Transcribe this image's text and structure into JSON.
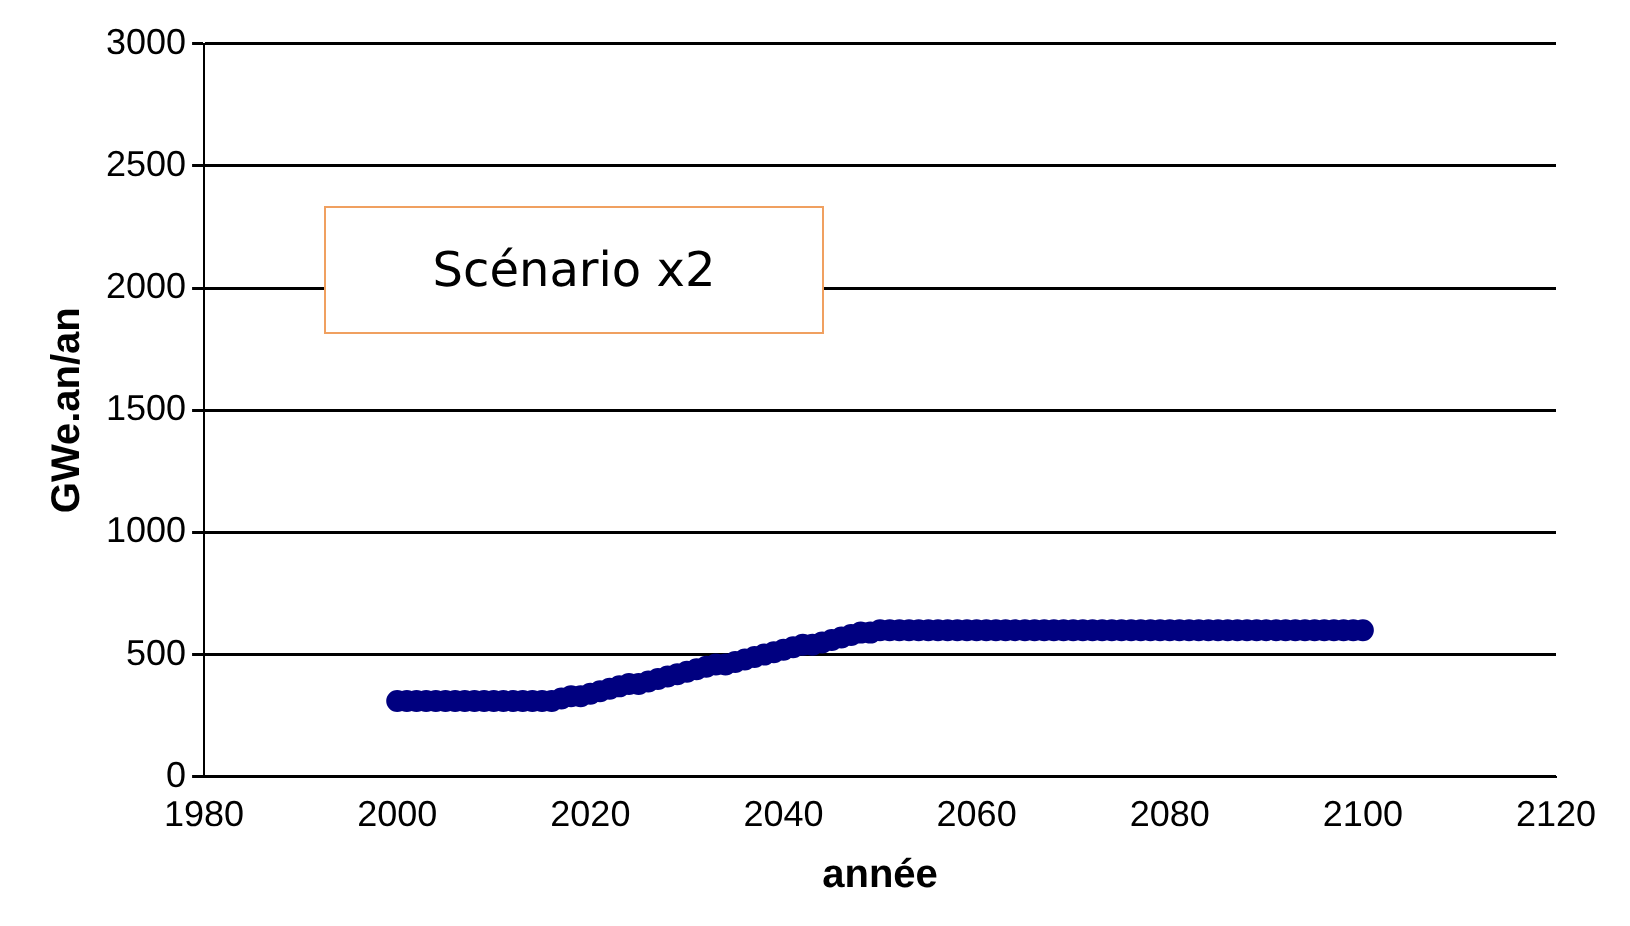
{
  "chart_data": {
    "type": "scatter",
    "xlabel": "année",
    "ylabel": "GWe.an/an",
    "annotations": [
      "Scénario x2"
    ],
    "xlim": [
      1980,
      2120
    ],
    "xticks": [
      1980,
      2000,
      2020,
      2040,
      2060,
      2080,
      2100,
      2120
    ],
    "ylim": [
      0,
      3000
    ],
    "yticks": [
      0,
      500,
      1000,
      1500,
      2000,
      2500,
      3000
    ],
    "grid": "y",
    "legend": false,
    "marker": "circle",
    "series": [
      {
        "color": "#000080",
        "x": [
          2000,
          2001,
          2002,
          2003,
          2004,
          2005,
          2006,
          2007,
          2008,
          2009,
          2010,
          2011,
          2012,
          2013,
          2014,
          2015,
          2016,
          2017,
          2018,
          2019,
          2020,
          2021,
          2022,
          2023,
          2024,
          2025,
          2026,
          2027,
          2028,
          2029,
          2030,
          2031,
          2032,
          2033,
          2034,
          2035,
          2036,
          2037,
          2038,
          2039,
          2040,
          2041,
          2042,
          2043,
          2044,
          2045,
          2046,
          2047,
          2048,
          2049,
          2050,
          2051,
          2052,
          2053,
          2054,
          2055,
          2056,
          2057,
          2058,
          2059,
          2060,
          2061,
          2062,
          2063,
          2064,
          2065,
          2066,
          2067,
          2068,
          2069,
          2070,
          2071,
          2072,
          2073,
          2074,
          2075,
          2076,
          2077,
          2078,
          2079,
          2080,
          2081,
          2082,
          2083,
          2084,
          2085,
          2086,
          2087,
          2088,
          2089,
          2090,
          2091,
          2092,
          2093,
          2094,
          2095,
          2096,
          2097,
          2098,
          2099,
          2100
        ],
        "values": [
          310,
          310,
          310,
          310,
          310,
          310,
          310,
          310,
          310,
          310,
          310,
          310,
          310,
          310,
          310,
          310,
          310,
          320,
          330,
          330,
          340,
          350,
          360,
          370,
          380,
          380,
          390,
          400,
          410,
          420,
          430,
          440,
          450,
          460,
          460,
          470,
          480,
          490,
          500,
          510,
          520,
          530,
          540,
          540,
          550,
          560,
          570,
          580,
          590,
          590,
          600,
          600,
          600,
          600,
          600,
          600,
          600,
          600,
          600,
          600,
          600,
          600,
          600,
          600,
          600,
          600,
          600,
          600,
          600,
          600,
          600,
          600,
          600,
          600,
          600,
          600,
          600,
          600,
          600,
          600,
          600,
          600,
          600,
          600,
          600,
          600,
          600,
          600,
          600,
          600,
          600,
          600,
          600,
          600,
          600,
          600,
          600,
          600,
          600,
          600,
          600
        ]
      }
    ]
  }
}
